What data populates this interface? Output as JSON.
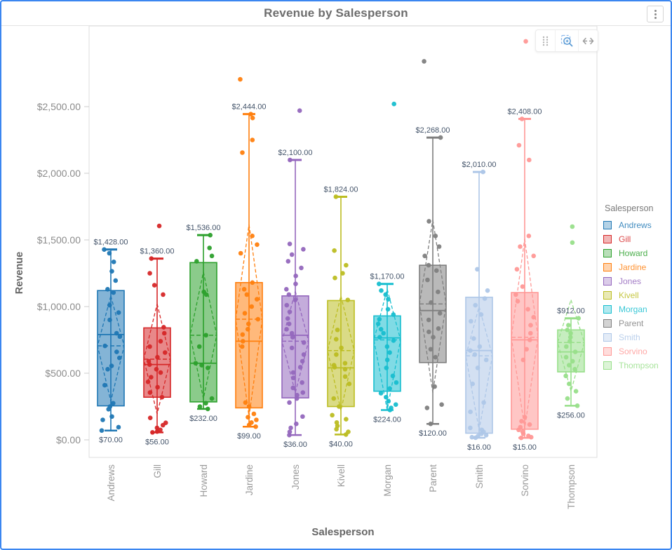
{
  "widget": {
    "title": "Revenue by Salesperson",
    "accent_border_color": "#3b86f0"
  },
  "menu": {
    "icon": "kebab-vertical-icon"
  },
  "toolbar": {
    "buttons": [
      {
        "id": "drag-handle",
        "icon": "grip-dots-icon",
        "active": false
      },
      {
        "id": "zoom-select",
        "icon": "zoom-area-icon",
        "active": true
      },
      {
        "id": "pan-horizontal",
        "icon": "horizontal-arrows-icon",
        "active": false
      }
    ]
  },
  "chart_data": {
    "type": "box",
    "title": "Revenue by Salesperson",
    "xlabel": "Salesperson",
    "ylabel": "Revenue",
    "legend_title": "Salesperson",
    "legend_position": "right",
    "grid": false,
    "ylim": [
      0,
      3100
    ],
    "yticks": [
      {
        "value": 0,
        "label": "$0.00"
      },
      {
        "value": 500,
        "label": "$500.00"
      },
      {
        "value": 1000,
        "label": "$1,000.00"
      },
      {
        "value": 1500,
        "label": "$1,500.00"
      },
      {
        "value": 2000,
        "label": "$2,000.00"
      },
      {
        "value": 2500,
        "label": "$2,500.00"
      }
    ],
    "categories": [
      "Andrews",
      "Gill",
      "Howard",
      "Jardine",
      "Jones",
      "Kivell",
      "Morgan",
      "Parent",
      "Smith",
      "Sorvino",
      "Thompson"
    ],
    "series": [
      {
        "name": "Andrews",
        "color": "#1f77b4",
        "min": 70,
        "q1": 255,
        "median": 790,
        "mean": 705,
        "q3": 1120,
        "max": 1428,
        "ci_low": 290,
        "ci_high": 1080,
        "max_label": "$1,428.00",
        "min_label": "$70.00",
        "points": [
          70,
          95,
          150,
          175,
          230,
          250,
          275,
          410,
          530,
          555,
          615,
          660,
          705,
          775,
          800,
          900,
          955,
          1010,
          1105,
          1130,
          1195,
          1265,
          1335,
          1400,
          1428
        ]
      },
      {
        "name": "Gill",
        "color": "#d62728",
        "min": 56,
        "q1": 320,
        "median": 565,
        "mean": 605,
        "q3": 840,
        "max": 1360,
        "ci_low": 195,
        "ci_high": 1020,
        "max_label": "$1,360.00",
        "min_label": "$56.00",
        "points": [
          56,
          62,
          75,
          90,
          110,
          128,
          165,
          320,
          355,
          395,
          435,
          470,
          505,
          530,
          565,
          590,
          620,
          655,
          700,
          740,
          800,
          845,
          1090,
          1160,
          1250,
          1360,
          1605
        ]
      },
      {
        "name": "Howard",
        "color": "#2ca02c",
        "min": 232,
        "q1": 285,
        "median": 575,
        "mean": 785,
        "q3": 1330,
        "max": 1536,
        "ci_low": 310,
        "ci_high": 1260,
        "max_label": "$1,536.00",
        "min_label": "$232.00",
        "points": [
          232,
          250,
          275,
          310,
          540,
          560,
          575,
          700,
          785,
          1090,
          1110,
          1340,
          1380,
          1440,
          1536
        ]
      },
      {
        "name": "Jardine",
        "color": "#ff7f0e",
        "min": 99,
        "q1": 240,
        "median": 740,
        "mean": 905,
        "q3": 1180,
        "max": 2444,
        "ci_low": 175,
        "ci_high": 1615,
        "max_label": "$2,444.00",
        "min_label": "$99.00",
        "points": [
          99,
          112,
          130,
          150,
          170,
          195,
          250,
          280,
          700,
          740,
          790,
          830,
          870,
          905,
          950,
          1000,
          1055,
          1090,
          1130,
          1180,
          1400,
          1465,
          1530,
          2155,
          2250,
          2415,
          2444,
          2705
        ]
      },
      {
        "name": "Jones",
        "color": "#9467bd",
        "min": 36,
        "q1": 315,
        "median": 785,
        "mean": 740,
        "q3": 1080,
        "max": 2100,
        "ci_low": 355,
        "ci_high": 1115,
        "max_label": "$2,100.00",
        "min_label": "$36.00",
        "points": [
          36,
          60,
          90,
          120,
          175,
          280,
          310,
          335,
          355,
          390,
          430,
          465,
          505,
          545,
          590,
          640,
          690,
          730,
          770,
          800,
          830,
          870,
          910,
          960,
          1010,
          1050,
          1090,
          1130,
          1170,
          1230,
          1290,
          1340,
          1390,
          1430,
          1470,
          2100,
          2470
        ]
      },
      {
        "name": "Kivell",
        "color": "#bcbd22",
        "min": 40,
        "q1": 250,
        "median": 540,
        "mean": 670,
        "q3": 1045,
        "max": 1824,
        "ci_low": 220,
        "ci_high": 1080,
        "max_label": "$1,824.00",
        "min_label": "$40.00",
        "points": [
          40,
          60,
          80,
          105,
          130,
          155,
          185,
          250,
          310,
          420,
          475,
          530,
          545,
          560,
          575,
          640,
          690,
          755,
          825,
          1050,
          1215,
          1250,
          1310,
          1420,
          1824
        ]
      },
      {
        "name": "Morgan",
        "color": "#17becf",
        "min": 224,
        "q1": 365,
        "median": 765,
        "mean": 750,
        "q3": 930,
        "max": 1170,
        "ci_low": 225,
        "ci_high": 1130,
        "max_label": "$1,170.00",
        "min_label": "$224.00",
        "points": [
          224,
          240,
          265,
          290,
          320,
          350,
          385,
          430,
          480,
          540,
          600,
          655,
          700,
          745,
          770,
          800,
          830,
          870,
          905,
          940,
          980,
          1055,
          1090,
          1120,
          1170,
          2520
        ]
      },
      {
        "name": "Parent",
        "color": "#7f7f7f",
        "min": 120,
        "q1": 580,
        "median": 970,
        "mean": 1020,
        "q3": 1310,
        "max": 2268,
        "ci_low": 355,
        "ci_high": 1650,
        "max_label": "$2,268.00",
        "min_label": "$120.00",
        "points": [
          120,
          240,
          265,
          400,
          620,
          680,
          770,
          810,
          835,
          900,
          950,
          1030,
          1110,
          1200,
          1270,
          1310,
          1380,
          1450,
          1530,
          1640,
          2268,
          2840
        ]
      },
      {
        "name": "Smith",
        "color": "#aec7e8",
        "min": 16,
        "q1": 50,
        "median": 670,
        "mean": 630,
        "q3": 1070,
        "max": 2010,
        "ci_low": 75,
        "ci_high": 1000,
        "max_label": "$2,010.00",
        "min_label": "$16.00",
        "points": [
          16,
          20,
          28,
          35,
          45,
          60,
          75,
          90,
          210,
          280,
          420,
          540,
          600,
          640,
          670,
          700,
          760,
          890,
          940,
          1010,
          1060,
          1120,
          1280,
          2010
        ]
      },
      {
        "name": "Sorvino",
        "color": "#ff9896",
        "min": 15,
        "q1": 80,
        "median": 750,
        "mean": 770,
        "q3": 1105,
        "max": 2408,
        "ci_low": 85,
        "ci_high": 1510,
        "max_label": "$2,408.00",
        "min_label": "$15.00",
        "points": [
          15,
          20,
          30,
          45,
          60,
          75,
          95,
          115,
          140,
          170,
          600,
          680,
          750,
          800,
          860,
          920,
          980,
          1040,
          1090,
          1150,
          1280,
          1380,
          1450,
          1530,
          2100,
          2210,
          2408,
          2990
        ]
      },
      {
        "name": "Thompson",
        "color": "#98df8a",
        "min": 256,
        "q1": 510,
        "median": 660,
        "mean": 730,
        "q3": 825,
        "max": 912,
        "ci_low": 365,
        "ci_high": 1050,
        "max_label": "$912.00",
        "min_label": "$256.00",
        "points": [
          256,
          310,
          365,
          420,
          480,
          530,
          560,
          590,
          620,
          660,
          700,
          740,
          770,
          800,
          825,
          860,
          912,
          1480,
          1600
        ]
      }
    ]
  }
}
